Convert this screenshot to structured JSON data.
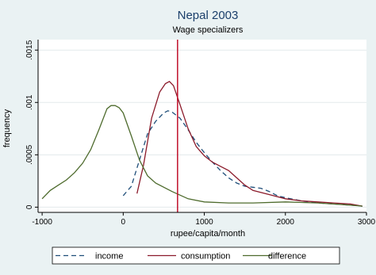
{
  "chart_data": {
    "type": "line",
    "title": "Nepal 2003",
    "subtitle": "Wage specializers",
    "xlabel": "rupee/capita/month",
    "ylabel": "frequency",
    "xlim": [
      -1050,
      3000
    ],
    "ylim": [
      -5e-05,
      0.0016
    ],
    "x_ticks": [
      -1000,
      0,
      1000,
      2000,
      3000
    ],
    "x_tick_labels": [
      "-1000",
      "0",
      "1000",
      "2000",
      "3000"
    ],
    "y_ticks": [
      0,
      0.0005,
      0.001,
      0.0015
    ],
    "y_tick_labels": [
      "0",
      ".0005",
      ".001",
      ".0015"
    ],
    "grid": "horizontal",
    "legend": "bottom",
    "vertical_line": {
      "x": 670,
      "color": "#c0102a"
    },
    "series": [
      {
        "name": "income",
        "color": "#1f4e79",
        "dash": "6,4",
        "x": [
          0,
          100,
          200,
          300,
          400,
          500,
          550,
          600,
          700,
          800,
          900,
          1000,
          1100,
          1200,
          1300,
          1400,
          1500,
          1600,
          1700,
          1800,
          1900,
          2000,
          2200,
          2400,
          2600,
          2800,
          2950
        ],
        "y": [
          0.00011,
          0.0002,
          0.00045,
          0.0007,
          0.00082,
          0.0009,
          0.00092,
          0.00091,
          0.00085,
          0.00074,
          0.00062,
          0.00052,
          0.00043,
          0.00035,
          0.00028,
          0.00023,
          0.0002,
          0.00019,
          0.00018,
          0.00015,
          0.00011,
          9e-05,
          6e-05,
          4e-05,
          3e-05,
          2e-05,
          1e-05
        ]
      },
      {
        "name": "consumption",
        "color": "#8b1a2a",
        "dash": "",
        "x": [
          170,
          250,
          350,
          450,
          520,
          570,
          620,
          700,
          800,
          900,
          1000,
          1100,
          1200,
          1300,
          1400,
          1500,
          1600,
          1800,
          2000,
          2200,
          2400,
          2600,
          2800,
          2950
        ],
        "y": [
          0.00013,
          0.0004,
          0.00085,
          0.0011,
          0.00118,
          0.0012,
          0.00116,
          0.00098,
          0.00075,
          0.00058,
          0.00049,
          0.00043,
          0.00039,
          0.00035,
          0.00028,
          0.00021,
          0.00016,
          0.00012,
          8e-05,
          6e-05,
          5e-05,
          4e-05,
          3e-05,
          1e-05
        ]
      },
      {
        "name": "difference",
        "color": "#4e6b2d",
        "dash": "",
        "x": [
          -1000,
          -900,
          -800,
          -700,
          -600,
          -500,
          -400,
          -300,
          -200,
          -150,
          -100,
          -50,
          0,
          100,
          200,
          300,
          400,
          600,
          800,
          1000,
          1300,
          1600,
          2000,
          2400,
          2800,
          2950
        ],
        "y": [
          8e-05,
          0.00016,
          0.00021,
          0.00026,
          0.00033,
          0.00042,
          0.00055,
          0.00074,
          0.00094,
          0.00097,
          0.00097,
          0.00095,
          0.0009,
          0.00068,
          0.00045,
          0.0003,
          0.00023,
          0.00015,
          8e-05,
          5e-05,
          4e-05,
          4e-05,
          5e-05,
          4e-05,
          2e-05,
          1e-05
        ]
      }
    ]
  }
}
